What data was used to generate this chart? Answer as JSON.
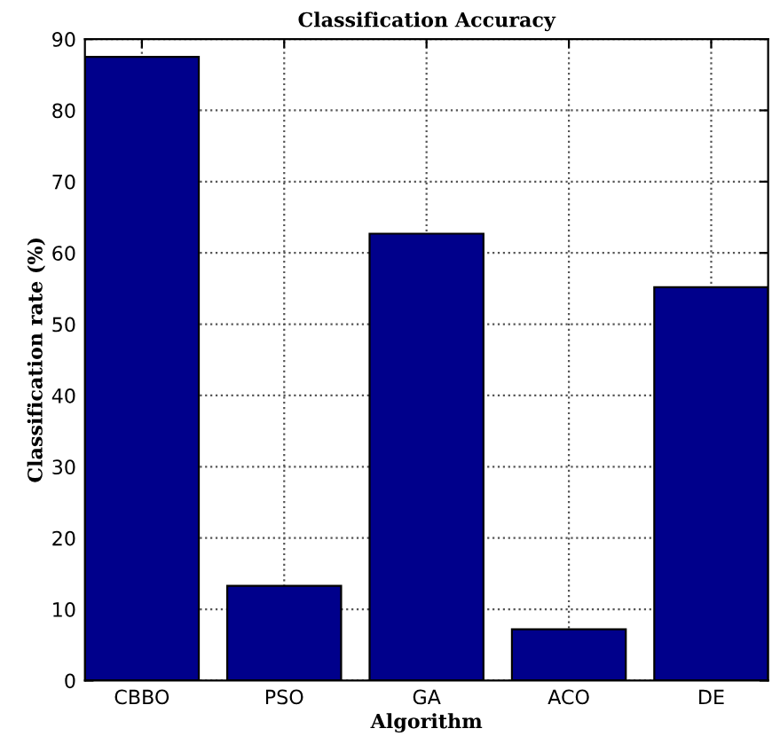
{
  "chart_data": {
    "type": "bar",
    "title": "Classification Accuracy",
    "xlabel": "Algorithm",
    "ylabel": "Classification rate (%)",
    "categories": [
      "CBBO",
      "PSO",
      "GA",
      "ACO",
      "DE"
    ],
    "values": [
      87.5,
      13.3,
      62.7,
      7.2,
      55.2
    ],
    "color": "#00008b",
    "ylim": [
      0,
      90
    ],
    "yticks": [
      0,
      10,
      20,
      30,
      40,
      50,
      60,
      70,
      80,
      90
    ],
    "grid": true
  }
}
